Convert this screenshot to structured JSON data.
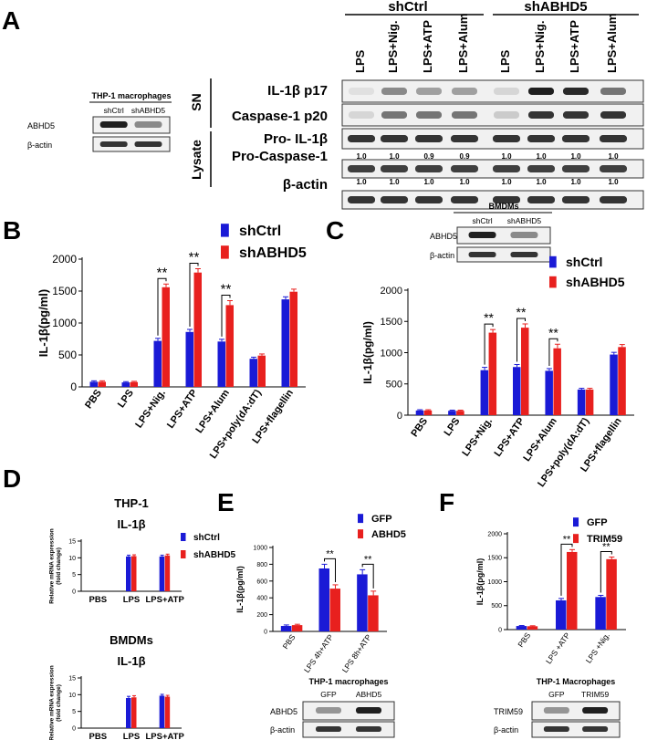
{
  "panel_labels": {
    "A": "A",
    "B": "B",
    "C": "C",
    "D": "D",
    "E": "E",
    "F": "F"
  },
  "panel_a": {
    "group_labels": [
      "shCtrl",
      "shABHD5"
    ],
    "lane_labels": [
      "LPS",
      "LPS+Nig.",
      "LPS+ATP",
      "LPS+Alum",
      "LPS",
      "LPS+Nig.",
      "LPS+ATP",
      "LPS+Alum"
    ],
    "section_labels": [
      "SN",
      "Lysate"
    ],
    "row_labels": [
      "IL-1β p17",
      "Caspase-1 p20",
      "Pro- IL-1β",
      "Pro-Caspase-1",
      "β-actin"
    ],
    "pro_il1b_ratios": [
      "1.0",
      "1.0",
      "0.9",
      "0.9",
      "1.0",
      "1.0",
      "1.0",
      "1.0"
    ],
    "pro_casp1_ratios": [
      "1.0",
      "1.0",
      "1.0",
      "1.0",
      "1.0",
      "1.0",
      "1.0",
      "1.0"
    ],
    "inset": {
      "title": "THP-1 macrophages",
      "lanes": [
        "shCtrl",
        "shABHD5"
      ],
      "rows": [
        "ABHD5",
        "β-actin"
      ]
    }
  },
  "panel_c_inset": {
    "title": "BMDMs",
    "lanes": [
      "shCtrl",
      "shABHD5"
    ],
    "rows": [
      "ABHD5",
      "β-actin"
    ]
  },
  "panel_e_inset": {
    "title": "THP-1 macrophages",
    "lanes": [
      "GFP",
      "ABHD5"
    ],
    "rows": [
      "ABHD5",
      "β-actin"
    ]
  },
  "panel_f_inset": {
    "title": "THP-1 Macrophages",
    "lanes": [
      "GFP",
      "TRIM59"
    ],
    "rows": [
      "TRIM59",
      "β-actin"
    ]
  },
  "sig_marker": "**",
  "colors": {
    "blue": "#1a1ad6",
    "red": "#e8201e"
  },
  "chart_data": [
    {
      "id": "B",
      "type": "bar",
      "title": "",
      "xlabel": "",
      "ylabel": "IL-1β(pg/ml)",
      "ylim": [
        0,
        2000
      ],
      "yticks": [
        0,
        500,
        1000,
        1500,
        2000
      ],
      "categories": [
        "PBS",
        "LPS",
        "LPS+Nig.",
        "LPS+ATP",
        "LPS+Alum",
        "LPS+poly(dA:dT)",
        "LPS+flagellin"
      ],
      "series": [
        {
          "name": "shCtrl",
          "color": "#1a1ad6",
          "values": [
            80,
            70,
            720,
            860,
            710,
            440,
            1370
          ],
          "errors": [
            15,
            12,
            40,
            40,
            35,
            25,
            40
          ]
        },
        {
          "name": "shABHD5",
          "color": "#e8201e",
          "values": [
            80,
            75,
            1560,
            1790,
            1280,
            490,
            1490
          ],
          "errors": [
            15,
            12,
            50,
            60,
            70,
            25,
            40
          ]
        }
      ],
      "significance": [
        {
          "category": "LPS+Nig.",
          "label": "**"
        },
        {
          "category": "LPS+ATP",
          "label": "**"
        },
        {
          "category": "LPS+Alum",
          "label": "**"
        }
      ],
      "legend": "top-right"
    },
    {
      "id": "C",
      "type": "bar",
      "title": "",
      "xlabel": "",
      "ylabel": "IL-1β(pg/ml)",
      "ylim": [
        0,
        2000
      ],
      "yticks": [
        0,
        500,
        1000,
        1500,
        2000
      ],
      "categories": [
        "PBS",
        "LPS",
        "LPS+Nig.",
        "LPS+ATP",
        "LPS+Alum",
        "LPS+poly(dA:dT)",
        "LPS+flagellin"
      ],
      "series": [
        {
          "name": "shCtrl",
          "color": "#1a1ad6",
          "values": [
            75,
            70,
            720,
            770,
            710,
            410,
            970
          ],
          "errors": [
            12,
            10,
            45,
            40,
            35,
            20,
            35
          ]
        },
        {
          "name": "shABHD5",
          "color": "#e8201e",
          "values": [
            75,
            70,
            1320,
            1400,
            1070,
            410,
            1090
          ],
          "errors": [
            12,
            10,
            50,
            60,
            65,
            20,
            40
          ]
        }
      ],
      "significance": [
        {
          "category": "LPS+Nig.",
          "label": "**"
        },
        {
          "category": "LPS+ATP",
          "label": "**"
        },
        {
          "category": "LPS+Alum",
          "label": "**"
        }
      ],
      "legend": "top-right"
    },
    {
      "id": "D1",
      "type": "bar",
      "title": "THP-1",
      "subtitle": "IL-1β",
      "xlabel": "",
      "ylabel": "Relative mRNA expression\n(fold change)",
      "ylim": [
        0,
        15
      ],
      "yticks": [
        0,
        5,
        10,
        15
      ],
      "categories": [
        "PBS",
        "LPS",
        "LPS+ATP"
      ],
      "series": [
        {
          "name": "shCtrl",
          "color": "#1a1ad6",
          "values": [
            0,
            10.4,
            10.4
          ],
          "errors": [
            0,
            0.4,
            0.4
          ]
        },
        {
          "name": "shABHD5",
          "color": "#e8201e",
          "values": [
            0,
            10.5,
            10.7
          ],
          "errors": [
            0,
            0.4,
            0.4
          ]
        }
      ],
      "legend": "top-right"
    },
    {
      "id": "D2",
      "type": "bar",
      "title": "BMDMs",
      "subtitle": "IL-1β",
      "xlabel": "",
      "ylabel": "Relative mRNA expression\n(fold change)",
      "ylim": [
        0,
        15
      ],
      "yticks": [
        0,
        5,
        10,
        15
      ],
      "categories": [
        "PBS",
        "LPS",
        "LPS+ATP"
      ],
      "series": [
        {
          "name": "shCtrl",
          "values": [
            0,
            9.0,
            9.7
          ],
          "errors": [
            0,
            0.5,
            0.4
          ]
        },
        {
          "name": "shABHD5",
          "values": [
            0,
            9.2,
            9.4
          ],
          "errors": [
            0,
            0.5,
            0.4
          ]
        }
      ]
    },
    {
      "id": "E",
      "type": "bar",
      "title": "",
      "xlabel": "",
      "ylabel": "IL-1β(pg/ml)",
      "ylim": [
        0,
        1000
      ],
      "yticks": [
        0,
        200,
        400,
        600,
        800,
        1000
      ],
      "categories": [
        "PBS",
        "LPS 4h+ATP",
        "LPS 8h+ATP"
      ],
      "series": [
        {
          "name": "GFP",
          "color": "#1a1ad6",
          "values": [
            65,
            750,
            680
          ],
          "errors": [
            12,
            50,
            55
          ]
        },
        {
          "name": "ABHD5",
          "color": "#e8201e",
          "values": [
            75,
            510,
            430
          ],
          "errors": [
            10,
            45,
            50
          ]
        }
      ],
      "significance": [
        {
          "category": "LPS 4h+ATP",
          "label": "**"
        },
        {
          "category": "LPS 8h+ATP",
          "label": "**"
        }
      ],
      "legend": "top-right"
    },
    {
      "id": "F",
      "type": "bar",
      "title": "",
      "xlabel": "",
      "ylabel": "IL-1β(pg/ml)",
      "ylim": [
        0,
        2000
      ],
      "yticks": [
        0,
        500,
        1000,
        1500,
        2000
      ],
      "categories": [
        "PBS",
        "LPS +ATP",
        "LPS +Nig."
      ],
      "series": [
        {
          "name": "GFP",
          "color": "#1a1ad6",
          "values": [
            75,
            610,
            680
          ],
          "errors": [
            10,
            40,
            35
          ]
        },
        {
          "name": "TRIM59",
          "color": "#e8201e",
          "values": [
            70,
            1620,
            1470
          ],
          "errors": [
            10,
            50,
            45
          ]
        }
      ],
      "significance": [
        {
          "category": "LPS +ATP",
          "label": "**"
        },
        {
          "category": "LPS +Nig.",
          "label": "**"
        }
      ],
      "legend": "top-right"
    }
  ]
}
